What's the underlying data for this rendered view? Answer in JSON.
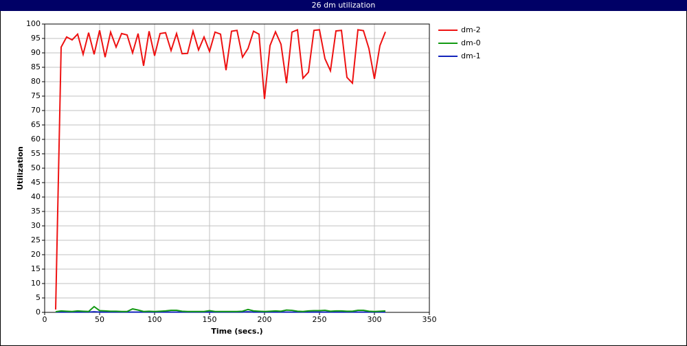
{
  "chart_data": {
    "type": "line",
    "title": "26 dm utilization",
    "xlabel": "Time (secs.)",
    "ylabel": "Utilization",
    "x": [
      10,
      15,
      20,
      25,
      30,
      35,
      40,
      45,
      50,
      55,
      60,
      65,
      70,
      75,
      80,
      85,
      90,
      95,
      100,
      105,
      110,
      115,
      120,
      125,
      130,
      135,
      140,
      145,
      150,
      155,
      160,
      165,
      170,
      175,
      180,
      185,
      190,
      195,
      200,
      205,
      210,
      215,
      220,
      225,
      230,
      235,
      240,
      245,
      250,
      255,
      260,
      265,
      270,
      275,
      280,
      285,
      290,
      295,
      300,
      305,
      310
    ],
    "series": [
      {
        "name": "dm-2",
        "color": "#ee1111",
        "values": [
          1,
          92,
          95.5,
          94.5,
          96.5,
          89.5,
          97,
          89.5,
          97.8,
          88.5,
          97.2,
          92,
          96.7,
          96.2,
          90,
          96.7,
          85.5,
          97.5,
          89,
          96.7,
          97,
          90.8,
          96.7,
          89.7,
          89.8,
          97.5,
          91,
          95.5,
          90.5,
          97.2,
          96.5,
          84,
          97.5,
          97.8,
          88.5,
          91.5,
          97.5,
          96.5,
          74,
          92.5,
          97.3,
          93,
          79.5,
          97.2,
          98,
          81.2,
          83.3,
          97.8,
          98,
          88,
          83.8,
          97.6,
          97.8,
          81.5,
          79.5,
          98,
          97.7,
          91.5,
          81,
          92.5,
          97.3
        ]
      },
      {
        "name": "dm-0",
        "color": "#119911",
        "values": [
          0.2,
          0.5,
          0.4,
          0.3,
          0.5,
          0.4,
          0.3,
          2,
          0.6,
          0.5,
          0.4,
          0.4,
          0.3,
          0.3,
          1.2,
          0.8,
          0.3,
          0.4,
          0.3,
          0.4,
          0.5,
          0.7,
          0.7,
          0.4,
          0.3,
          0.3,
          0.3,
          0.3,
          0.6,
          0.3,
          0.3,
          0.3,
          0.3,
          0.3,
          0.4,
          1,
          0.5,
          0.4,
          0.3,
          0.4,
          0.5,
          0.4,
          0.8,
          0.7,
          0.4,
          0.3,
          0.5,
          0.6,
          0.6,
          0.7,
          0.4,
          0.5,
          0.5,
          0.4,
          0.4,
          0.7,
          0.7,
          0.4,
          0.3,
          0.4,
          0.5
        ]
      },
      {
        "name": "dm-1",
        "color": "#1122bb",
        "values": [
          0.1,
          0.1,
          0.1,
          0.1,
          0.1,
          0.1,
          0.1,
          0.2,
          0.1,
          0.1,
          0.1,
          0.1,
          0.1,
          0.1,
          0.1,
          0.1,
          0.1,
          0.1,
          0.1,
          0.1,
          0.1,
          0.1,
          0.1,
          0.1,
          0.1,
          0.1,
          0.1,
          0.1,
          0.1,
          0.1,
          0.1,
          0.1,
          0.1,
          0.1,
          0.1,
          0.2,
          0.1,
          0.1,
          0.1,
          0.1,
          0.1,
          0.1,
          0.1,
          0.1,
          0.1,
          0.1,
          0.1,
          0.1,
          0.1,
          0.1,
          0.1,
          0.1,
          0.1,
          0.1,
          0.1,
          0.1,
          0.1,
          0.1,
          0.1,
          0.1,
          0.1
        ]
      }
    ],
    "xlim": [
      0,
      350
    ],
    "xticks": [
      0,
      50,
      100,
      150,
      200,
      250,
      300,
      350
    ],
    "ylim": [
      0,
      100
    ],
    "yticks": [
      0,
      5,
      10,
      15,
      20,
      25,
      30,
      35,
      40,
      45,
      50,
      55,
      60,
      65,
      70,
      75,
      80,
      85,
      90,
      95,
      100
    ],
    "grid": true
  }
}
